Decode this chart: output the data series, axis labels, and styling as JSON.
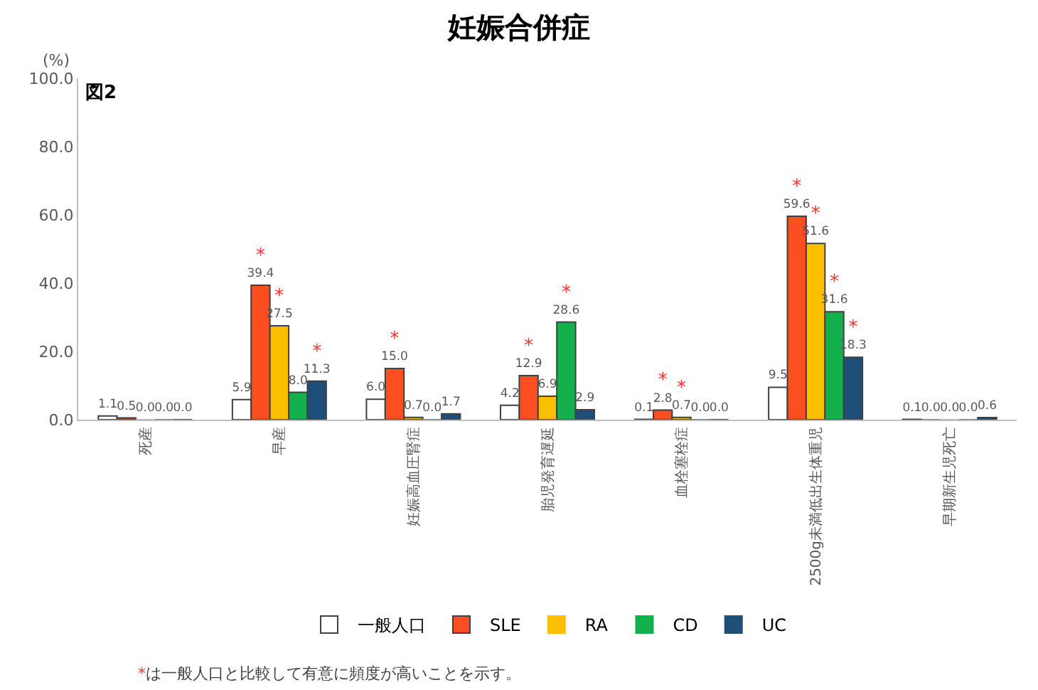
{
  "chart_data": {
    "type": "bar",
    "title": "妊娠合併症",
    "ylabel": "(%)",
    "categories": [
      "死産",
      "早産",
      "妊娠高血圧腎症",
      "胎児発育遅延",
      "血栓塞栓症",
      "2500g未満低出生体重児",
      "早期新生児死亡"
    ],
    "series": [
      {
        "name": "一般人口",
        "color": "#ffffff",
        "values": [
          1.1,
          5.9,
          6.0,
          4.2,
          0.1,
          9.5,
          0.1
        ],
        "value_labels": [
          "1.1",
          "5.9",
          "6.0",
          "4.2",
          "0.1",
          "9.5",
          "0.1"
        ]
      },
      {
        "name": "SLE",
        "color": "#fc4e20",
        "values": [
          0.5,
          39.4,
          15.0,
          12.9,
          2.8,
          59.6,
          0.0
        ],
        "value_labels": [
          "0.5",
          "*\n39.4",
          "*\n15.0",
          "*\n12.9",
          "*\n2.8",
          "*\n59.6",
          "0.0"
        ]
      },
      {
        "name": "RA",
        "color": "#fbbf00",
        "values": [
          0.0,
          27.5,
          0.7,
          6.9,
          0.7,
          51.6,
          0.0
        ],
        "value_labels": [
          "0.0",
          "*\n27.5",
          "0.7",
          "6.9",
          "*\n0.7",
          "*\n51.6",
          "0.0"
        ]
      },
      {
        "name": "CD",
        "color": "#13b04d",
        "values": [
          0.0,
          8.0,
          0.0,
          28.6,
          0.0,
          31.6,
          0.0
        ],
        "value_labels": [
          "0.0",
          "8.0",
          "0.0",
          "*\n28.6",
          "0.0",
          "*\n31.6",
          "0.0"
        ]
      },
      {
        "name": "UC",
        "color": "#1f4e79",
        "values": [
          0.0,
          11.3,
          1.7,
          2.9,
          0.0,
          18.3,
          0.6
        ],
        "value_labels": [
          "0.0",
          "*\n11.3",
          "1.7",
          "2.9",
          "0.0",
          "*\n18.3",
          "0.6"
        ]
      }
    ],
    "ylim": [
      0,
      100
    ],
    "yticks": [
      {
        "value": 0,
        "label": "0.0"
      },
      {
        "value": 20,
        "label": "20.0"
      },
      {
        "value": 40,
        "label": "40.0"
      },
      {
        "value": 60,
        "label": "60.0"
      },
      {
        "value": 80,
        "label": "80.0"
      },
      {
        "value": 100,
        "label": "100.0"
      }
    ],
    "data_labels": true,
    "grid": false,
    "legend": "bottom",
    "annotations": [
      "図2",
      "*は一般人口と比較して有意に頻度が高いことを示す。"
    ]
  }
}
